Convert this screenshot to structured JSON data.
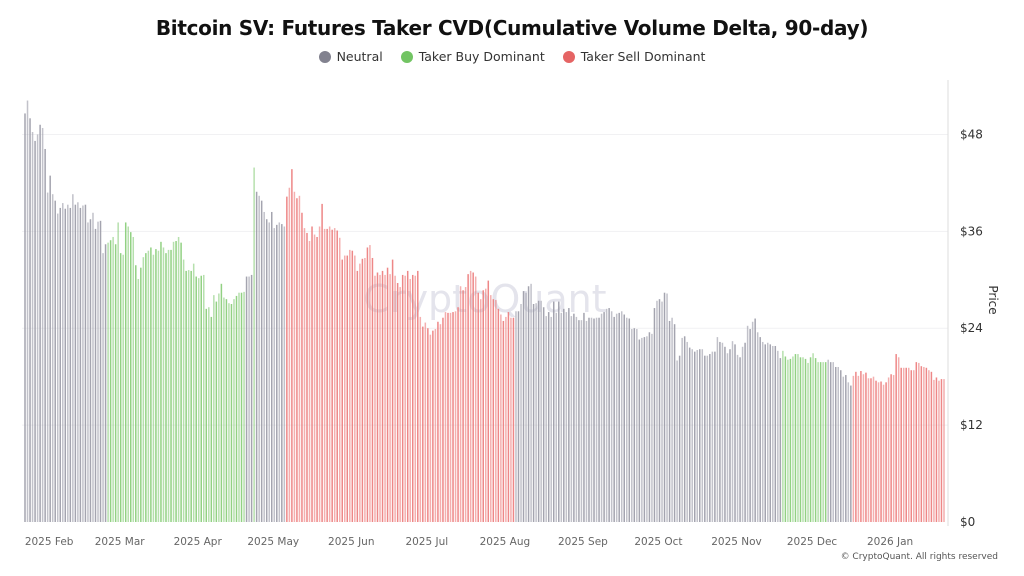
{
  "chart_data": {
    "type": "bar",
    "title": "Bitcoin SV: Futures Taker CVD(Cumulative Volume Delta, 90-day)",
    "ylabel": "Price",
    "ylim": [
      0,
      54
    ],
    "x_range": [
      "2025-01-24",
      "2026-01-24"
    ],
    "grid": true,
    "legend_position": "top",
    "legend": [
      {
        "name": "Neutral",
        "color": "#82828f"
      },
      {
        "name": "Taker Buy Dominant",
        "color": "#72c463"
      },
      {
        "name": "Taker Sell Dominant",
        "color": "#e56464"
      }
    ],
    "colors": {
      "Neutral": "#9a9aa6",
      "Taker Buy Dominant": "#86cc76",
      "Taker Sell Dominant": "#ec7a7a"
    },
    "y_ticks": [
      {
        "value": 0,
        "label": "$0"
      },
      {
        "value": 12,
        "label": "$12"
      },
      {
        "value": 24,
        "label": "$24"
      },
      {
        "value": 36,
        "label": "$36"
      },
      {
        "value": 48,
        "label": "$48"
      }
    ],
    "x_ticks": [
      {
        "label": "2025 Feb",
        "date": "2025-02-01"
      },
      {
        "label": "2025 Mar",
        "date": "2025-03-01"
      },
      {
        "label": "2025 Apr",
        "date": "2025-04-01"
      },
      {
        "label": "2025 May",
        "date": "2025-05-01"
      },
      {
        "label": "2025 Jun",
        "date": "2025-06-01"
      },
      {
        "label": "2025 Jul",
        "date": "2025-07-01"
      },
      {
        "label": "2025 Aug",
        "date": "2025-08-01"
      },
      {
        "label": "2025 Sep",
        "date": "2025-09-01"
      },
      {
        "label": "2025 Oct",
        "date": "2025-10-01"
      },
      {
        "label": "2025 Nov",
        "date": "2025-11-01"
      },
      {
        "label": "2025 Dec",
        "date": "2025-12-01"
      },
      {
        "label": "2026 Jan",
        "date": "2026-01-01"
      }
    ],
    "segments": [
      {
        "regime": "Neutral",
        "values": [
          50.6,
          52.2,
          50.0,
          48.3,
          47.2,
          48.0,
          49.2,
          48.8,
          46.2,
          40.8,
          42.9,
          40.6,
          39.8,
          38.2,
          38.9,
          39.5,
          38.8,
          39.3,
          38.9,
          40.6,
          39.3,
          39.6,
          38.9,
          39.2,
          39.3,
          37.1,
          37.5,
          38.3,
          36.3,
          37.2,
          37.3,
          33.3,
          34.4
        ]
      },
      {
        "regime": "Taker Buy Dominant",
        "values": [
          34.6,
          34.9,
          35.3,
          34.4,
          37.1,
          33.3,
          33.1,
          37.1,
          36.6,
          35.9,
          35.3,
          31.8,
          30.1,
          31.5,
          32.8,
          33.3,
          33.6,
          34.0,
          33.1,
          33.8,
          33.6,
          34.7,
          34.0,
          33.3,
          33.7,
          33.7,
          34.7,
          34.8,
          35.3,
          34.6,
          32.5,
          31.1,
          31.2,
          31.1,
          32.0,
          30.4,
          30.2,
          30.5,
          30.6,
          26.4,
          26.6,
          25.4,
          28.1,
          27.3,
          28.3,
          29.5,
          27.8,
          27.6,
          27.1,
          27.0,
          27.6,
          28.0,
          28.4,
          28.4,
          28.5
        ]
      },
      {
        "regime": "Neutral",
        "values": [
          30.4,
          30.4,
          30.6
        ]
      },
      {
        "regime": "Taker Buy Dominant",
        "values": [
          43.9
        ]
      },
      {
        "regime": "Neutral",
        "values": [
          40.9,
          40.4,
          39.8,
          38.4,
          37.5,
          37.1,
          38.4,
          36.4,
          36.8,
          37.1,
          36.9,
          36.6
        ]
      },
      {
        "regime": "Taker Sell Dominant",
        "values": [
          40.3,
          41.4,
          43.7,
          40.9,
          40.1,
          40.4,
          38.3,
          36.4,
          35.8,
          34.8,
          36.6,
          35.6,
          35.3,
          36.6,
          39.4,
          36.3,
          36.3,
          36.6,
          36.2,
          36.4,
          36.1,
          35.2,
          32.5,
          33.0,
          33.0,
          33.7,
          33.6,
          33.0,
          31.1,
          32.0,
          32.6,
          32.7,
          34.0,
          34.3,
          32.7,
          30.5,
          30.9,
          30.6,
          31.1,
          30.6,
          31.5,
          30.7,
          32.5,
          30.5,
          29.6,
          29.1,
          30.6,
          30.5,
          31.1,
          30.1,
          30.6,
          30.5,
          31.1,
          25.4,
          24.2,
          24.7,
          24.0,
          23.2,
          23.7,
          23.9,
          24.8,
          24.5,
          25.3,
          26.0,
          25.9,
          25.9,
          26.0,
          26.1,
          26.6,
          29.2,
          28.7,
          29.1,
          30.7,
          31.1,
          30.9,
          30.4,
          28.4,
          27.6,
          28.7,
          28.9,
          29.9,
          28.1,
          27.6,
          27.5,
          26.4,
          25.7,
          24.9,
          25.4,
          26.0,
          25.3,
          25.3
        ]
      },
      {
        "regime": "Neutral",
        "values": [
          26.1,
          26.1,
          27.0,
          28.6,
          28.4,
          29.2,
          29.5,
          27.0,
          27.1,
          27.4,
          27.4,
          26.6,
          25.5,
          26.0,
          25.4,
          27.3,
          25.9,
          27.3,
          25.9,
          26.4,
          26.0,
          26.5,
          25.5,
          25.8,
          25.4,
          25.0,
          25.0,
          25.9,
          24.9,
          25.3,
          25.3,
          25.2,
          25.3,
          25.3,
          25.8,
          26.0,
          26.4,
          26.5,
          26.1,
          25.4,
          25.8,
          25.9,
          26.1,
          25.7,
          25.3,
          25.2,
          23.9,
          24.0,
          23.9,
          22.6,
          22.8,
          22.9,
          23.0,
          23.5,
          23.3,
          26.5,
          27.4,
          27.6,
          27.3,
          28.4,
          28.3,
          24.9,
          25.3,
          24.5,
          20.0,
          20.6,
          22.8,
          23.0,
          22.3,
          21.6,
          21.4,
          21.1,
          21.3,
          21.4,
          21.4,
          20.6,
          20.6,
          20.8,
          21.1,
          21.1,
          22.9,
          22.3,
          22.2,
          21.7,
          20.9,
          21.4,
          22.4,
          22.0,
          20.7,
          20.4,
          21.7,
          22.2,
          24.3,
          23.9,
          24.8,
          25.2,
          23.5,
          22.9,
          22.3,
          22.0,
          22.2,
          22.0,
          21.8,
          21.8,
          21.2,
          20.3
        ]
      },
      {
        "regime": "Taker Buy Dominant",
        "values": [
          21.2,
          20.5,
          20.1,
          20.2,
          20.5,
          20.8,
          20.8,
          20.4,
          20.4,
          20.2,
          19.7,
          20.4,
          20.9,
          20.3,
          19.8,
          19.8,
          19.8,
          19.8
        ]
      },
      {
        "regime": "Neutral",
        "values": [
          20.1,
          19.8,
          19.8,
          19.2,
          19.2,
          18.8,
          18.0,
          18.2,
          17.3,
          16.9
        ]
      },
      {
        "regime": "Taker Sell Dominant",
        "values": [
          18.1,
          18.6,
          18.1,
          18.7,
          18.3,
          18.5,
          17.8,
          17.8,
          18.0,
          17.5,
          17.3,
          17.4,
          17.0,
          17.3,
          17.9,
          18.3,
          18.2,
          20.8,
          20.4,
          19.1,
          19.1,
          19.1,
          19.1,
          18.8,
          18.8,
          19.8,
          19.7,
          19.3,
          19.2,
          19.1,
          18.8,
          18.6,
          17.6,
          17.9,
          17.5,
          17.7,
          17.7
        ]
      }
    ]
  },
  "watermark": "CryptoQuant",
  "copyright": "© CryptoQuant. All rights reserved"
}
